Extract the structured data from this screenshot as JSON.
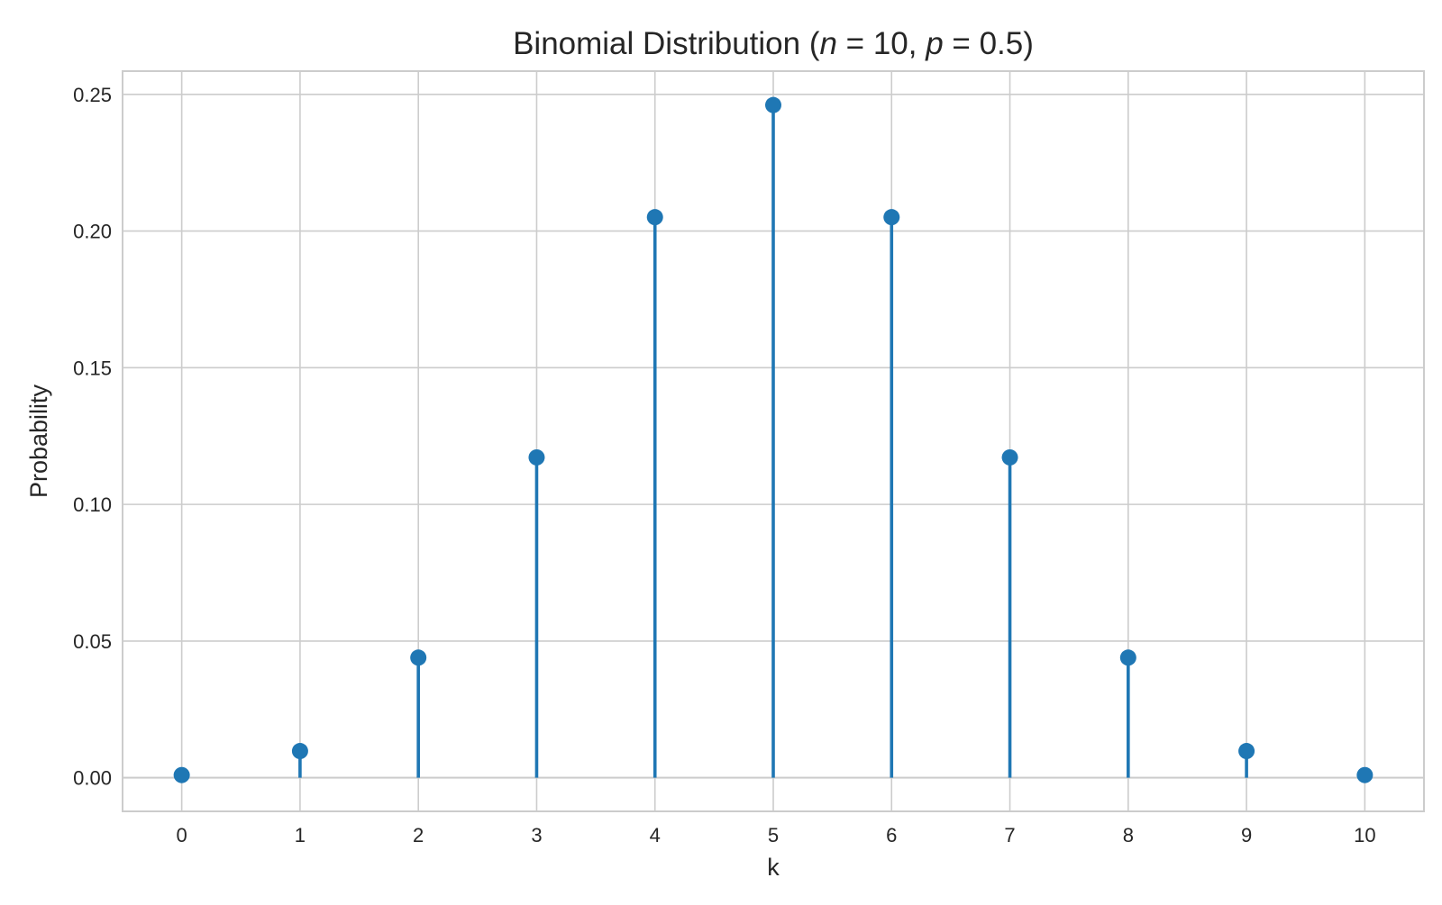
{
  "chart_data": {
    "type": "stem",
    "title": {
      "prefix": "Binomial Distribution (",
      "n_symbol": "n",
      "n_eq": " = 10, ",
      "p_symbol": "p",
      "p_eq": " = 0.5",
      "suffix": ")"
    },
    "xlabel": "k",
    "ylabel": "Probability",
    "x": [
      0,
      1,
      2,
      3,
      4,
      5,
      6,
      7,
      8,
      9,
      10
    ],
    "values": [
      0.000977,
      0.009766,
      0.043945,
      0.117188,
      0.205078,
      0.246094,
      0.205078,
      0.117188,
      0.043945,
      0.009766,
      0.000977
    ],
    "xticks": [
      "0",
      "1",
      "2",
      "3",
      "4",
      "5",
      "6",
      "7",
      "8",
      "9",
      "10"
    ],
    "yticks": [
      0.0,
      0.05,
      0.1,
      0.15,
      0.2,
      0.25
    ],
    "ytick_labels": [
      "0.00",
      "0.05",
      "0.10",
      "0.15",
      "0.20",
      "0.25"
    ],
    "xlim": [
      -0.5,
      10.5
    ],
    "ylim": [
      -0.0123,
      0.2585
    ],
    "grid": true,
    "color": "#1f77b4"
  }
}
